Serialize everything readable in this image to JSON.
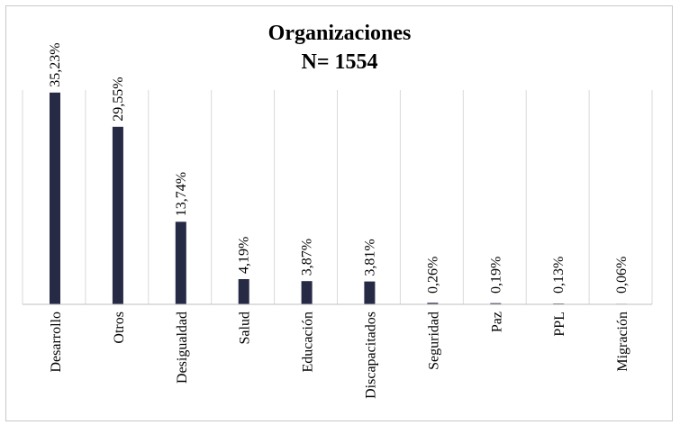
{
  "chart_data": {
    "type": "bar",
    "title": "Organizaciones",
    "subtitle": "N= 1554",
    "xlabel": "",
    "ylabel": "",
    "categories": [
      "Desarrollo",
      "Otros",
      "Desigualdad",
      "Salud",
      "Educación",
      "Discapacitados",
      "Seguridad",
      "Paz",
      "PPL",
      "Migración"
    ],
    "values": [
      35.23,
      29.55,
      13.74,
      4.19,
      3.87,
      3.81,
      0.26,
      0.19,
      0.13,
      0.06
    ],
    "data_labels": [
      "35,23%",
      "29,55%",
      "13,74%",
      "4,19%",
      "3,87%",
      "3,81%",
      "0,26%",
      "0,19%",
      "0,13%",
      "0,06%"
    ],
    "ylim": [
      0,
      40
    ],
    "grid": "vertical",
    "legend": "none",
    "colors": {
      "bar": "#262a45",
      "grid": "#d9d9d9",
      "axis": "#bfbfbf"
    }
  }
}
